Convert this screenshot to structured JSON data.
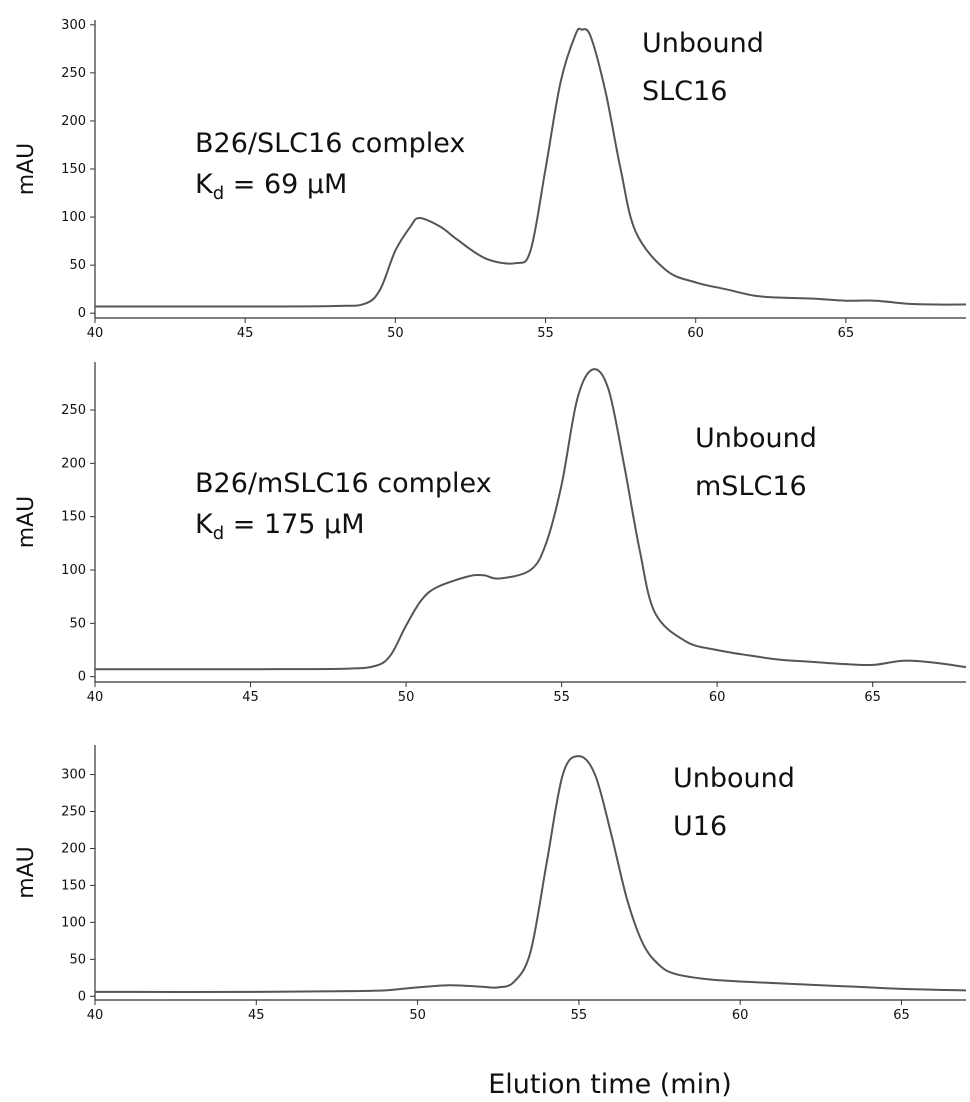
{
  "colors": {
    "trace": "#555555",
    "axis": "#333333",
    "text": "#111111"
  },
  "chart_data": [
    {
      "type": "line",
      "ylabel": "mAU",
      "xlabel": "",
      "xlim": [
        40,
        69
      ],
      "ylim": [
        -5,
        305
      ],
      "xticks": [
        40,
        45,
        50,
        55,
        60,
        65
      ],
      "yticks": [
        0,
        50,
        100,
        150,
        200,
        250,
        300
      ],
      "grid": false,
      "annotations": [
        {
          "lines": [
            "B26/SLC16 complex",
            "K_d = 69 μM"
          ],
          "text": "B26/SLC16 complex",
          "kd_main": "K",
          "kd_sub": "d",
          "kd_rest": " = 69 μM",
          "x": 43.0,
          "y": 175
        },
        {
          "lines": [
            "Unbound",
            "SLC16"
          ],
          "text": "Unbound",
          "text2": "SLC16",
          "x": 58.0,
          "y": 280
        }
      ],
      "series": [
        {
          "x": [
            40,
            45,
            48,
            49,
            49.5,
            50,
            50.5,
            50.8,
            51.5,
            52,
            53,
            54,
            54.5,
            55,
            55.5,
            56,
            56.2,
            56.5,
            57,
            57.5,
            58,
            59,
            60,
            61,
            62,
            63,
            64,
            65,
            66,
            67,
            68,
            69
          ],
          "y": [
            7,
            7,
            7.5,
            10,
            25,
            65,
            90,
            99,
            90,
            78,
            57,
            52,
            65,
            150,
            240,
            290,
            295,
            288,
            230,
            150,
            85,
            45,
            32,
            25,
            18,
            16,
            15,
            13,
            13,
            10,
            9,
            9
          ]
        }
      ]
    },
    {
      "type": "line",
      "ylabel": "mAU",
      "xlabel": "",
      "xlim": [
        40,
        68
      ],
      "ylim": [
        -5,
        295
      ],
      "xticks": [
        40,
        45,
        50,
        55,
        60,
        65
      ],
      "yticks": [
        0,
        50,
        100,
        150,
        200,
        250
      ],
      "grid": false,
      "annotations": [
        {
          "lines": [
            "B26/mSLC16 complex",
            "K_d = 175 μM"
          ],
          "text": "B26/mSLC16 complex",
          "kd_main": "K",
          "kd_sub": "d",
          "kd_rest": " = 175 μM",
          "x": 43.0,
          "y": 185
        },
        {
          "lines": [
            "Unbound",
            "mSLC16"
          ],
          "text": "Unbound",
          "text2": "mSLC16",
          "x": 58.0,
          "y": 235
        }
      ],
      "series": [
        {
          "x": [
            40,
            45,
            48,
            49,
            49.5,
            50,
            50.5,
            51,
            52,
            52.5,
            53,
            54,
            54.5,
            55,
            55.5,
            56,
            56.5,
            57,
            57.5,
            58,
            59,
            60,
            61,
            62,
            63,
            64,
            65,
            66,
            67,
            68
          ],
          "y": [
            7,
            7,
            7.5,
            10,
            20,
            48,
            72,
            84,
            94,
            95,
            92,
            100,
            125,
            180,
            260,
            288,
            270,
            200,
            120,
            60,
            33,
            25,
            20,
            16,
            14,
            12,
            11,
            15,
            13,
            9
          ]
        }
      ]
    },
    {
      "type": "line",
      "ylabel": "mAU",
      "xlabel": "Elution time (min)",
      "xlim": [
        40,
        67
      ],
      "ylim": [
        -5,
        340
      ],
      "xticks": [
        40,
        45,
        50,
        55,
        60,
        65
      ],
      "yticks": [
        0,
        50,
        100,
        150,
        200,
        250,
        300
      ],
      "grid": false,
      "annotations": [
        {
          "lines": [
            "Unbound",
            "U16"
          ],
          "text": "Unbound",
          "text2": "U16",
          "x": 57.5,
          "y": 300
        }
      ],
      "series": [
        {
          "x": [
            40,
            45,
            48,
            49,
            49.5,
            50,
            51,
            52,
            52.5,
            53,
            53.5,
            54,
            54.5,
            55,
            55.5,
            56,
            56.5,
            57,
            57.5,
            58,
            59,
            60,
            61,
            62,
            63,
            64,
            65,
            66,
            67
          ],
          "y": [
            6,
            6,
            7,
            8,
            10,
            12,
            15,
            13,
            12,
            20,
            60,
            180,
            300,
            325,
            300,
            220,
            130,
            70,
            42,
            30,
            23,
            20,
            18,
            16,
            14,
            12,
            10,
            9,
            8
          ]
        }
      ]
    }
  ]
}
